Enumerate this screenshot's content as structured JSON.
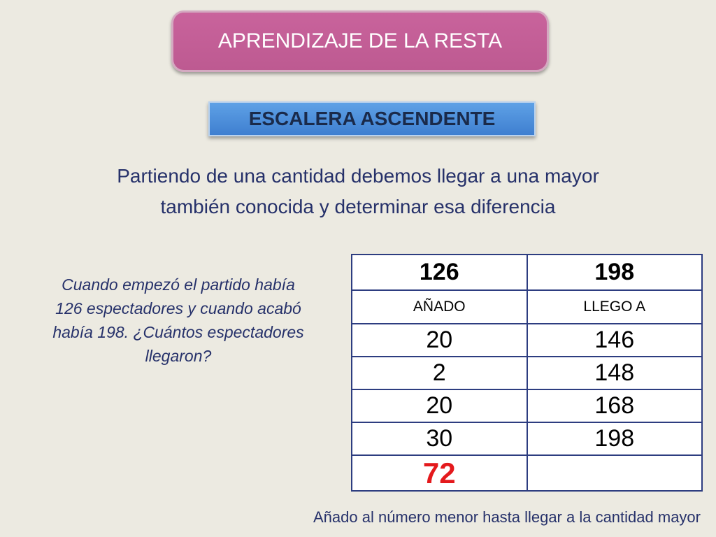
{
  "title": "APRENDIZAJE DE LA RESTA",
  "subtitle": "ESCALERA ASCENDENTE",
  "intro": {
    "line1": "Partiendo de una cantidad debemos llegar a una mayor",
    "line2": "también conocida y determinar esa diferencia"
  },
  "problem": {
    "line1": "Cuando empezó el partido había",
    "line2": "126 espectadores y cuando acabó",
    "line3": "había 198. ¿Cuántos espectadores",
    "line4": "llegaron?"
  },
  "table": {
    "start": "126",
    "target": "198",
    "col_added": "AÑADO",
    "col_reached": "LLEGO A",
    "steps": [
      {
        "added": "20",
        "reached": "146"
      },
      {
        "added": "2",
        "reached": "148"
      },
      {
        "added": "20",
        "reached": "168"
      },
      {
        "added": "30",
        "reached": "198"
      }
    ],
    "result": "72",
    "result_color": "#E4191C"
  },
  "footer": "Añado al número menor hasta llegar a la cantidad mayor"
}
